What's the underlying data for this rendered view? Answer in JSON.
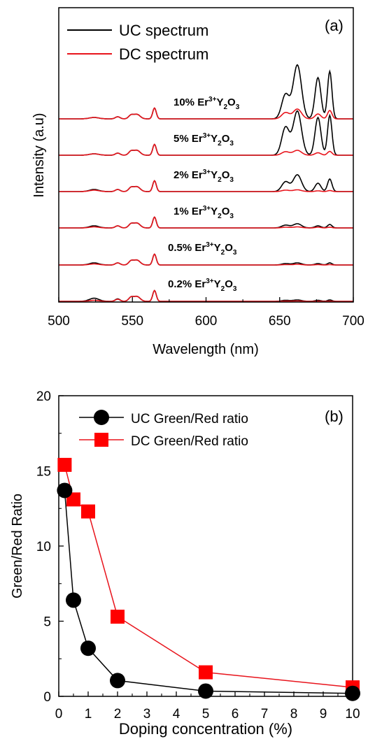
{
  "colors": {
    "uc": "#000000",
    "dc": "#e8141c",
    "marker_dc": "#ff0000"
  },
  "chart_data": [
    {
      "type": "line",
      "panel_label": "(a)",
      "xlabel": "Wavelength (nm)",
      "ylabel": "Intensity (a.u)",
      "xlim": [
        500,
        700
      ],
      "xticks": [
        "500",
        "550",
        "600",
        "650",
        "700"
      ],
      "grid": false,
      "legend_position": "top-left",
      "legend": [
        "UC spectrum",
        "DC spectrum"
      ],
      "series": [
        {
          "name": "UC spectrum",
          "traces": [
            {
              "label": {
                "prefix": "10% Er",
                "sup": "3+",
                "y": "Y",
                "sub2": "2",
                "o": "O",
                "sub3": "3"
              },
              "peaks": [
                [
                  524,
                  2.0
                ],
                [
                  540,
                  3.0
                ],
                [
                  553,
                  6.5
                ],
                [
                  565,
                  15.5
                ],
                [
                  654,
                  35.0
                ],
                [
                  662,
                  77.0
                ],
                [
                  676,
                  59.0
                ],
                [
                  684,
                  68.0
                ]
              ]
            },
            {
              "label": {
                "prefix": "5% Er",
                "sup": "3+",
                "y": "Y",
                "sub2": "2",
                "o": "O",
                "sub3": "3"
              },
              "peaks": [
                [
                  524,
                  2.0
                ],
                [
                  540,
                  3.0
                ],
                [
                  553,
                  7.0
                ],
                [
                  565,
                  15.5
                ],
                [
                  654,
                  40.0
                ],
                [
                  662,
                  63.0
                ],
                [
                  676,
                  54.0
                ],
                [
                  684,
                  57.0
                ]
              ]
            },
            {
              "label": {
                "prefix": "2% Er",
                "sup": "3+",
                "y": "Y",
                "sub2": "2",
                "o": "O",
                "sub3": "3"
              },
              "peaks": [
                [
                  524,
                  3.0
                ],
                [
                  540,
                  3.0
                ],
                [
                  553,
                  7.0
                ],
                [
                  565,
                  15.5
                ],
                [
                  654,
                  14.0
                ],
                [
                  662,
                  24.0
                ],
                [
                  676,
                  12.0
                ],
                [
                  684,
                  18.0
                ]
              ]
            },
            {
              "label": {
                "prefix": "1% Er",
                "sup": "3+",
                "y": "Y",
                "sub2": "2",
                "o": "O",
                "sub3": "3"
              },
              "peaks": [
                [
                  524,
                  3.0
                ],
                [
                  540,
                  3.0
                ],
                [
                  553,
                  7.0
                ],
                [
                  565,
                  15.5
                ],
                [
                  654,
                  4.0
                ],
                [
                  662,
                  6.0
                ],
                [
                  676,
                  3.0
                ],
                [
                  684,
                  5.0
                ]
              ]
            },
            {
              "label": {
                "prefix": "0.5% Er",
                "sup": "3+",
                "y": "Y",
                "sub2": "2",
                "o": "O",
                "sub3": "3"
              },
              "peaks": [
                [
                  524,
                  3.0
                ],
                [
                  540,
                  3.0
                ],
                [
                  553,
                  7.0
                ],
                [
                  565,
                  15.5
                ],
                [
                  654,
                  2.0
                ],
                [
                  662,
                  3.0
                ],
                [
                  676,
                  2.0
                ],
                [
                  684,
                  3.0
                ]
              ]
            },
            {
              "label": {
                "prefix": "0.2% Er",
                "sup": "3+",
                "y": "Y",
                "sub2": "2",
                "o": "O",
                "sub3": "3"
              },
              "peaks": [
                [
                  524,
                  4.5
                ],
                [
                  540,
                  3.5
                ],
                [
                  553,
                  7.0
                ],
                [
                  565,
                  15.5
                ],
                [
                  654,
                  1.5
                ],
                [
                  662,
                  2.0
                ],
                [
                  676,
                  1.5
                ],
                [
                  684,
                  2.0
                ]
              ]
            }
          ]
        },
        {
          "name": "DC spectrum",
          "traces": [
            {
              "peaks": [
                [
                  524,
                  2.0
                ],
                [
                  540,
                  3.0
                ],
                [
                  553,
                  6.5
                ],
                [
                  565,
                  15.5
                ],
                [
                  654,
                  9.0
                ],
                [
                  662,
                  14.0
                ],
                [
                  676,
                  7.0
                ],
                [
                  684,
                  12.0
                ]
              ]
            },
            {
              "peaks": [
                [
                  524,
                  2.0
                ],
                [
                  540,
                  3.0
                ],
                [
                  553,
                  7.0
                ],
                [
                  565,
                  15.5
                ],
                [
                  654,
                  5.0
                ],
                [
                  662,
                  7.0
                ],
                [
                  676,
                  3.5
                ],
                [
                  684,
                  5.5
                ]
              ]
            },
            {
              "peaks": [
                [
                  524,
                  2.0
                ],
                [
                  540,
                  3.0
                ],
                [
                  553,
                  7.0
                ],
                [
                  565,
                  15.5
                ],
                [
                  654,
                  2.0
                ],
                [
                  662,
                  2.5
                ],
                [
                  676,
                  1.0
                ],
                [
                  684,
                  1.5
                ]
              ]
            },
            {
              "peaks": [
                [
                  524,
                  1.5
                ],
                [
                  540,
                  3.0
                ],
                [
                  553,
                  7.0
                ],
                [
                  565,
                  15.5
                ],
                [
                  654,
                  1.0
                ],
                [
                  662,
                  1.5
                ],
                [
                  676,
                  1.0
                ],
                [
                  684,
                  1.0
                ]
              ]
            },
            {
              "peaks": [
                [
                  524,
                  1.5
                ],
                [
                  540,
                  3.0
                ],
                [
                  553,
                  7.0
                ],
                [
                  565,
                  15.5
                ],
                [
                  654,
                  0.5
                ],
                [
                  662,
                  1.0
                ],
                [
                  676,
                  0.5
                ],
                [
                  684,
                  0.5
                ]
              ]
            },
            {
              "peaks": [
                [
                  524,
                  1.5
                ],
                [
                  540,
                  3.0
                ],
                [
                  553,
                  7.0
                ],
                [
                  565,
                  15.5
                ],
                [
                  654,
                  0.3
                ],
                [
                  662,
                  0.5
                ],
                [
                  676,
                  0.3
                ],
                [
                  684,
                  0.3
                ]
              ]
            }
          ]
        }
      ]
    },
    {
      "type": "line",
      "panel_label": "(b)",
      "xlabel": "Doping concentration (%)",
      "ylabel": "Green/Red Ratio",
      "xlim": [
        0,
        10
      ],
      "ylim": [
        0,
        20
      ],
      "xticks": [
        "0",
        "1",
        "2",
        "3",
        "4",
        "5",
        "6",
        "7",
        "8",
        "9",
        "10"
      ],
      "yticks": [
        "0",
        "5",
        "10",
        "15",
        "20"
      ],
      "grid": false,
      "legend_position": "top-left",
      "series": [
        {
          "name": "UC Green/Red ratio",
          "marker": "circle",
          "x": [
            0.2,
            0.5,
            1,
            2,
            5,
            10
          ],
          "y": [
            13.7,
            6.4,
            3.2,
            1.05,
            0.35,
            0.2
          ]
        },
        {
          "name": "DC Green/Red ratio",
          "marker": "square",
          "x": [
            0.2,
            0.5,
            1,
            2,
            5,
            10
          ],
          "y": [
            15.4,
            13.1,
            12.3,
            5.3,
            1.6,
            0.6
          ]
        }
      ]
    }
  ]
}
